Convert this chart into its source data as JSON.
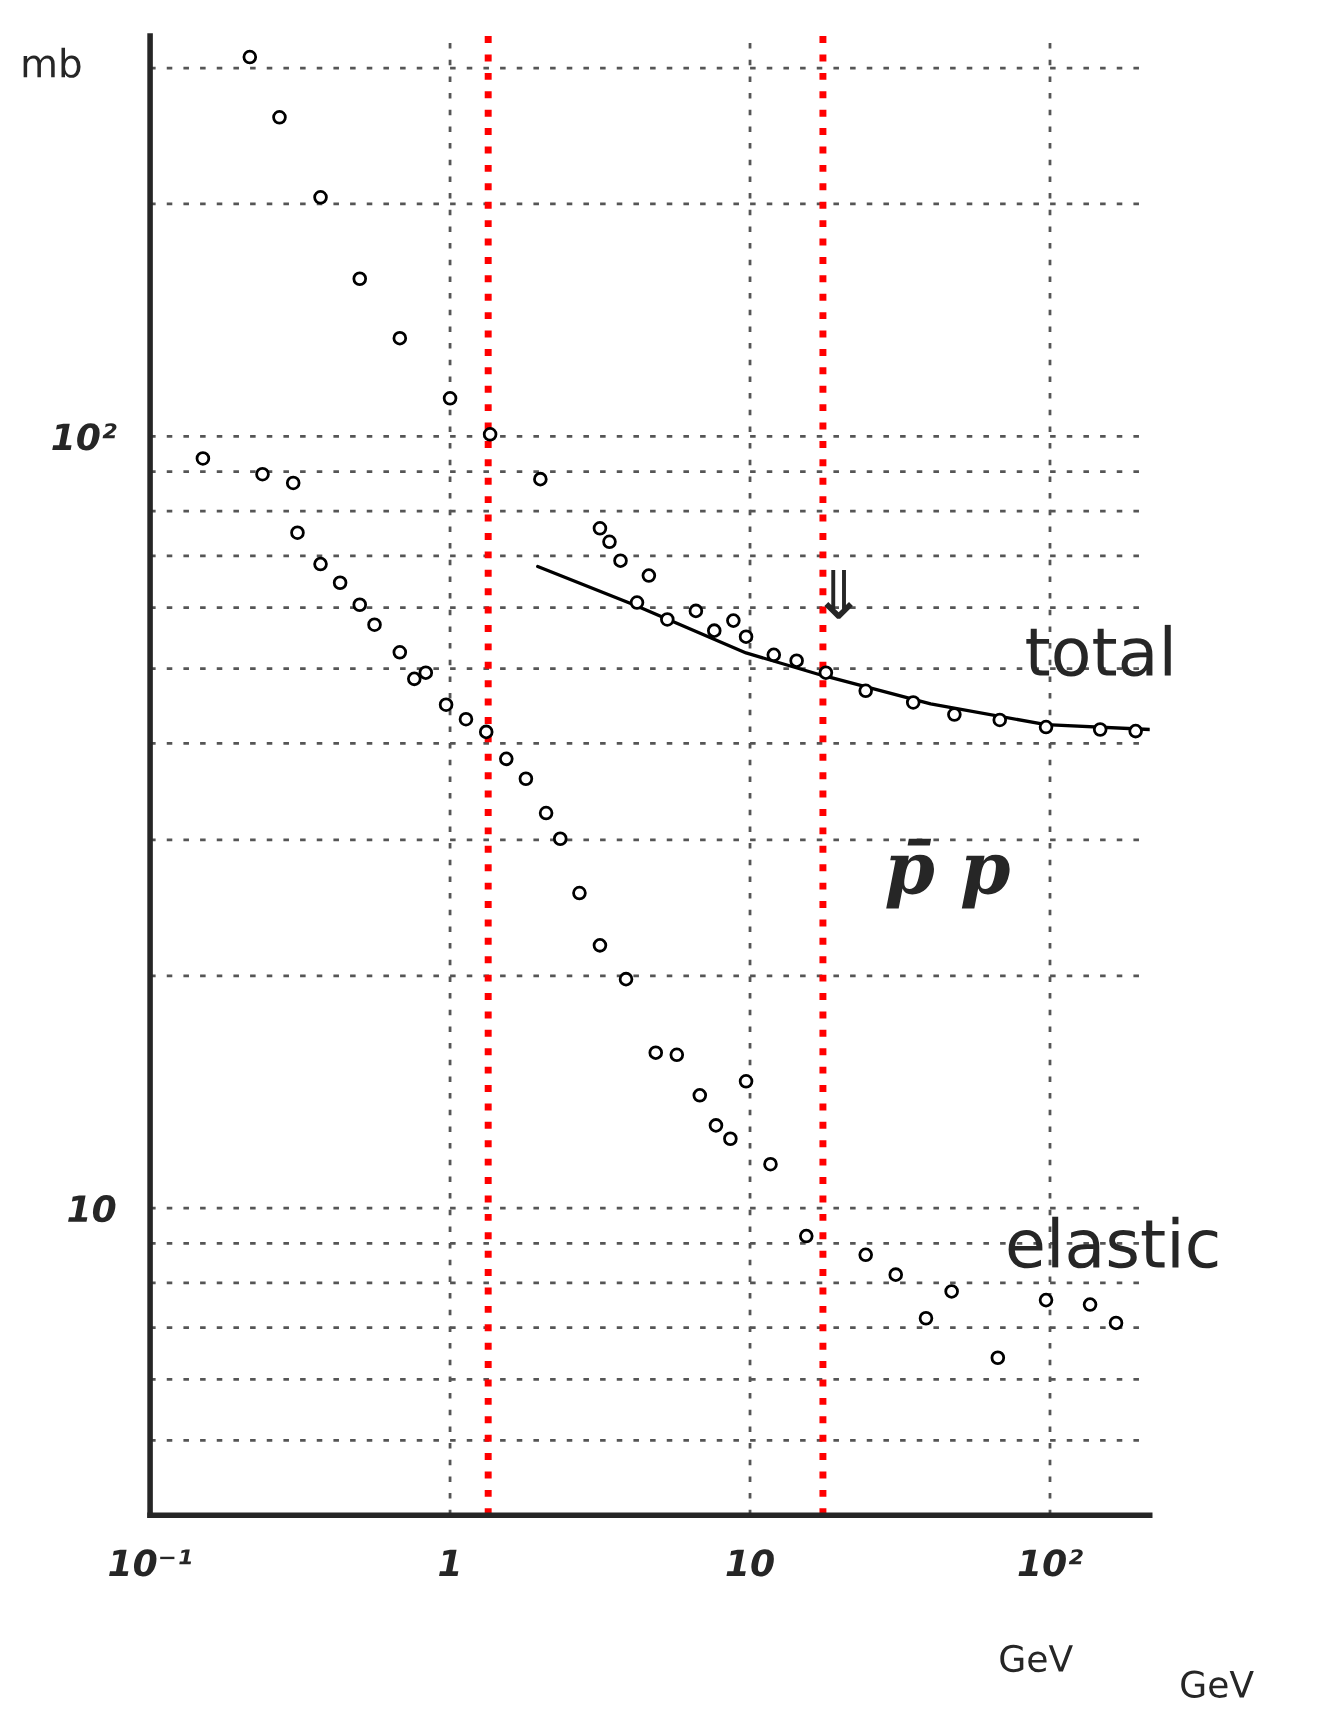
{
  "chart_data": {
    "type": "scatter",
    "ylabel": "mb",
    "xlabel": "GeV",
    "log": "xy",
    "xlim": [
      0.1,
      215
    ],
    "ylim": [
      4,
      330
    ],
    "xticks": [
      {
        "value": 0.1,
        "label": "10⁻¹"
      },
      1,
      10,
      {
        "value": 100,
        "label": "10²"
      }
    ],
    "yticks": [
      {
        "value": 5,
        "label": null
      },
      {
        "value": 6,
        "label": null
      },
      {
        "value": 7,
        "label": null
      },
      {
        "value": 8,
        "label": null
      },
      {
        "value": 9,
        "label": null
      },
      10,
      {
        "value": 20,
        "label": null
      },
      {
        "value": 30,
        "label": null
      },
      {
        "value": 40,
        "label": null
      },
      {
        "value": 50,
        "label": null
      },
      {
        "value": 60,
        "label": null
      },
      {
        "value": 70,
        "label": null
      },
      {
        "value": 80,
        "label": null
      },
      {
        "value": 90,
        "label": null
      },
      {
        "value": 100,
        "label": "10²"
      },
      {
        "value": 200,
        "label": null
      },
      {
        "value": 300,
        "label": null
      }
    ],
    "grid": true,
    "marker": "circle",
    "legend": false,
    "series": [
      {
        "name": "total",
        "color": "#000000",
        "x": [
          0.215,
          0.27,
          0.37,
          0.5,
          0.68,
          1.0,
          1.36,
          2.0,
          3.16,
          3.4,
          3.7,
          4.2,
          4.6,
          5.3,
          6.6,
          7.6,
          8.8,
          9.7,
          12.0,
          14.3,
          17.9,
          24.3,
          35,
          48,
          68,
          97,
          147,
          193
        ],
        "values": [
          310,
          259,
          204,
          160,
          134,
          112,
          100.6,
          88,
          76,
          73,
          69,
          60.9,
          66,
          57.9,
          59.4,
          56,
          57.7,
          55.0,
          52.1,
          51.2,
          49.4,
          46.8,
          45.2,
          43.6,
          42.9,
          42,
          41.7,
          41.5
        ]
      },
      {
        "type": "line",
        "marker": "none",
        "color": "#000000",
        "x": [
          1.96,
          4.1,
          9.7,
          17.1,
          40,
          97,
          215
        ],
        "values": [
          67.8,
          60.5,
          52.4,
          49.1,
          45,
          42.3,
          41.7
        ]
      },
      {
        "name": "elastic",
        "color": "#000000",
        "x": [
          0.15,
          0.237,
          0.3,
          0.31,
          0.37,
          0.43,
          0.5,
          0.56,
          0.68,
          0.76,
          0.83,
          0.97,
          1.13,
          1.32,
          1.54,
          1.79,
          2.09,
          2.33,
          2.7,
          3.16,
          3.86,
          4.85,
          5.7,
          6.8,
          7.7,
          8.6,
          9.7,
          11.7,
          15.4,
          24.3,
          30.6,
          38.6,
          47,
          67,
          97,
          136,
          166
        ],
        "values": [
          93.6,
          89.3,
          87,
          75,
          68.3,
          64.6,
          60.5,
          57,
          52.5,
          48.5,
          49.4,
          44.9,
          43,
          41.4,
          38.2,
          36,
          32.5,
          30.1,
          25.6,
          21.9,
          19.8,
          15.9,
          15.8,
          14.0,
          12.8,
          12.3,
          14.6,
          11.4,
          9.2,
          8.7,
          8.2,
          7.2,
          7.8,
          6.4,
          7.6,
          7.5,
          7.1
        ]
      }
    ],
    "ref_lines": [
      {
        "axis": "x",
        "value": 1.34,
        "color": "#ff0000",
        "line_style": "dotted"
      },
      {
        "axis": "x",
        "value": 17.5,
        "color": "#ff0000",
        "line_style": "dotted"
      }
    ],
    "annotations": [
      "p̄ p",
      "⇓",
      "GeV"
    ]
  }
}
